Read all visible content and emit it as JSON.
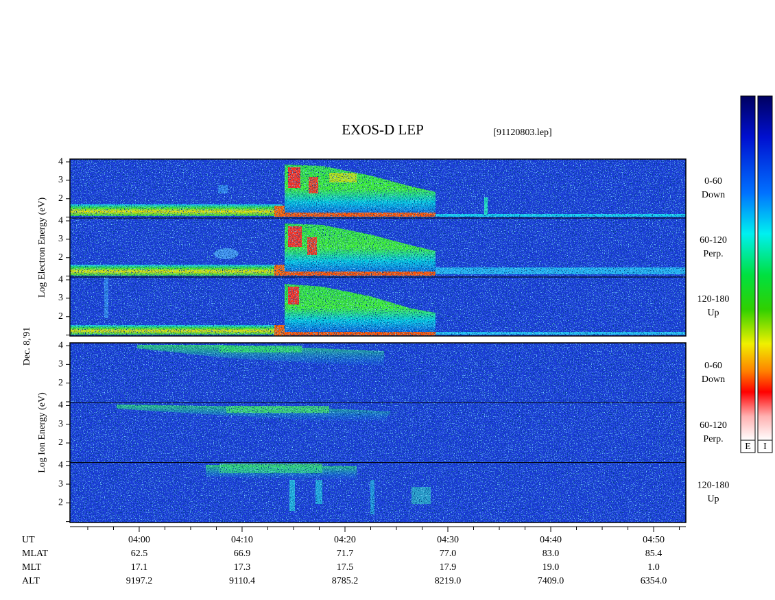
{
  "chart_data": {
    "type": "spectrogram",
    "title": "EXOS-D LEP",
    "subtitle": "[91120803.lep]",
    "date_label": "Dec. 8,'91",
    "groups": [
      {
        "ylabel": "Log  Electron  Energy  (eV)",
        "panels": [
          {
            "label": "0-60",
            "sublabel": "Down"
          },
          {
            "label": "60-120",
            "sublabel": "Perp."
          },
          {
            "label": "120-180",
            "sublabel": "Up"
          }
        ]
      },
      {
        "ylabel": "Log  Ion  Energy  (eV)",
        "panels": [
          {
            "label": "0-60",
            "sublabel": "Down"
          },
          {
            "label": "60-120",
            "sublabel": "Perp."
          },
          {
            "label": "120-180",
            "sublabel": "Up"
          }
        ]
      }
    ],
    "ylim": [
      0.95,
      4.15
    ],
    "yticks": [
      2,
      3,
      4
    ],
    "yminorticks": [
      1
    ],
    "xlabel": "UT",
    "xlim": [
      233.27,
      293.13
    ],
    "xticks": [
      {
        "value": 240,
        "label": "04:00"
      },
      {
        "value": 250,
        "label": "04:10"
      },
      {
        "value": 260,
        "label": "04:20"
      },
      {
        "value": 270,
        "label": "04:30"
      },
      {
        "value": 280,
        "label": "04:40"
      },
      {
        "value": 290,
        "label": "04:50"
      }
    ],
    "xminorticks": [
      235,
      237.5,
      242.5,
      245,
      247.5,
      252.5,
      255,
      257.5,
      262.5,
      265,
      267.5,
      272.5,
      275,
      277.5,
      282.5,
      285,
      287.5,
      292.5
    ],
    "ephemeris": [
      {
        "label": "MLAT",
        "values": [
          "62.5",
          "66.9",
          "71.7",
          "77.0",
          "83.0",
          "85.4"
        ]
      },
      {
        "label": "MLT",
        "values": [
          "17.1",
          "17.3",
          "17.5",
          "17.9",
          "19.0",
          "1.0"
        ]
      },
      {
        "label": "ALT",
        "values": [
          "9197.2",
          "9110.4",
          "8785.2",
          "8219.0",
          "7409.0",
          "6354.0"
        ]
      }
    ],
    "colorbars": [
      "E",
      "I"
    ]
  }
}
